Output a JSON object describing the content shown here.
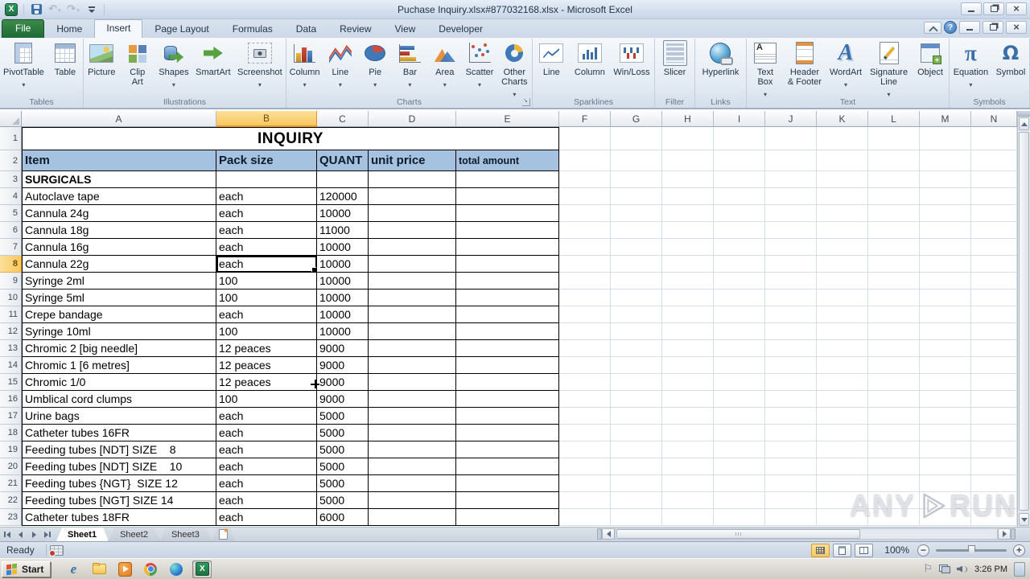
{
  "titlebar": {
    "title": "Puchase Inquiry.xlsx#877032168.xlsx  -  Microsoft Excel",
    "qat": [
      {
        "icon": "excel-logo"
      },
      {
        "icon": "save"
      },
      {
        "icon": "undo",
        "arrow": true
      },
      {
        "icon": "redo",
        "arrow": true
      },
      {
        "icon": "qat-dropdown"
      }
    ],
    "window_buttons": [
      "minimize",
      "restore",
      "close"
    ]
  },
  "ribbon": {
    "tabs": [
      {
        "label": "File",
        "file": true
      },
      {
        "label": "Home"
      },
      {
        "label": "Insert",
        "active": true
      },
      {
        "label": "Page Layout"
      },
      {
        "label": "Formulas"
      },
      {
        "label": "Data"
      },
      {
        "label": "Review"
      },
      {
        "label": "View"
      },
      {
        "label": "Developer"
      }
    ],
    "workbook_buttons": [
      "collapse-ribbon",
      "help",
      "minimize",
      "restore",
      "close"
    ],
    "groups": [
      {
        "name": "Tables",
        "buttons": [
          {
            "label": "PivotTable",
            "icon": "pivottable",
            "arrow": true
          },
          {
            "label": "Table",
            "icon": "table"
          }
        ]
      },
      {
        "name": "Illustrations",
        "buttons": [
          {
            "label": "Picture",
            "icon": "picture"
          },
          {
            "label": "Clip\nArt",
            "icon": "clipart"
          },
          {
            "label": "Shapes",
            "icon": "shapes",
            "arrow": true
          },
          {
            "label": "SmartArt",
            "icon": "smartart"
          },
          {
            "label": "Screenshot",
            "icon": "screenshot",
            "arrow": true
          }
        ]
      },
      {
        "name": "Charts",
        "launcher": true,
        "buttons": [
          {
            "label": "Column",
            "icon": "chart-column",
            "arrow": true
          },
          {
            "label": "Line",
            "icon": "chart-line",
            "arrow": true
          },
          {
            "label": "Pie",
            "icon": "chart-pie",
            "arrow": true
          },
          {
            "label": "Bar",
            "icon": "chart-bar",
            "arrow": true
          },
          {
            "label": "Area",
            "icon": "chart-area",
            "arrow": true
          },
          {
            "label": "Scatter",
            "icon": "chart-scatter",
            "arrow": true
          },
          {
            "label": "Other\nCharts",
            "icon": "chart-other",
            "arrow": true
          }
        ]
      },
      {
        "name": "Sparklines",
        "buttons": [
          {
            "label": "Line",
            "icon": "spark-line"
          },
          {
            "label": "Column",
            "icon": "spark-column"
          },
          {
            "label": "Win/Loss",
            "icon": "spark-winloss"
          }
        ]
      },
      {
        "name": "Filter",
        "buttons": [
          {
            "label": "Slicer",
            "icon": "slicer"
          }
        ]
      },
      {
        "name": "Links",
        "buttons": [
          {
            "label": "Hyperlink",
            "icon": "hyperlink"
          }
        ]
      },
      {
        "name": "Text",
        "buttons": [
          {
            "label": "Text\nBox",
            "icon": "textbox",
            "arrow": true
          },
          {
            "label": "Header\n& Footer",
            "icon": "headfoot"
          },
          {
            "label": "WordArt",
            "icon": "wordart",
            "arrow": true
          },
          {
            "label": "Signature\nLine",
            "icon": "signature",
            "arrow": true
          },
          {
            "label": "Object",
            "icon": "object"
          }
        ]
      },
      {
        "name": "Symbols",
        "buttons": [
          {
            "label": "Equation",
            "icon": "equation",
            "arrow": true
          },
          {
            "label": "Symbol",
            "icon": "symbol"
          }
        ]
      }
    ]
  },
  "sheet": {
    "columns": [
      {
        "letter": "A"
      },
      {
        "letter": "B"
      },
      {
        "letter": "C"
      },
      {
        "letter": "D"
      },
      {
        "letter": "E"
      },
      {
        "letter": "F"
      },
      {
        "letter": "G"
      },
      {
        "letter": "H"
      },
      {
        "letter": "I"
      },
      {
        "letter": "J"
      },
      {
        "letter": "K"
      },
      {
        "letter": "L"
      },
      {
        "letter": "M"
      },
      {
        "letter": "N"
      }
    ],
    "selected_column": "B",
    "selected_row": 8,
    "selected_cell": "B8",
    "title_row": {
      "row": 1,
      "text": "INQUIRY"
    },
    "header_row": {
      "row": 2,
      "cells": [
        "Item",
        "Pack size",
        "QUANT",
        "unit price",
        "total amount"
      ]
    },
    "rows": [
      {
        "n": 3,
        "item": "SURGICALS",
        "pack": "",
        "qty": "",
        "bold": true
      },
      {
        "n": 4,
        "item": "Autoclave tape",
        "pack": "each",
        "qty": "120000"
      },
      {
        "n": 5,
        "item": "Cannula 24g",
        "pack": "each",
        "qty": "10000"
      },
      {
        "n": 6,
        "item": "Cannula 18g",
        "pack": "each",
        "qty": "11000"
      },
      {
        "n": 7,
        "item": "Cannula 16g",
        "pack": "each",
        "qty": "10000"
      },
      {
        "n": 8,
        "item": "Cannula 22g",
        "pack": "each",
        "qty": "10000"
      },
      {
        "n": 9,
        "item": "Syringe 2ml",
        "pack": "100",
        "qty": "10000"
      },
      {
        "n": 10,
        "item": "Syringe 5ml",
        "pack": "100",
        "qty": "10000"
      },
      {
        "n": 11,
        "item": "Crepe bandage",
        "pack": "each",
        "qty": "10000"
      },
      {
        "n": 12,
        "item": "Syringe 10ml",
        "pack": "100",
        "qty": "10000"
      },
      {
        "n": 13,
        "item": "Chromic 2 [big needle]",
        "pack": "12 peaces",
        "qty": "9000"
      },
      {
        "n": 14,
        "item": "Chromic 1 [6 metres]",
        "pack": "12 peaces",
        "qty": "9000"
      },
      {
        "n": 15,
        "item": "Chromic 1/0",
        "pack": "12 peaces",
        "qty": "9000"
      },
      {
        "n": 16,
        "item": "Umblical cord clumps",
        "pack": "100",
        "qty": "9000"
      },
      {
        "n": 17,
        "item": "Urine bags",
        "pack": "each",
        "qty": "5000"
      },
      {
        "n": 18,
        "item": "Catheter tubes 16FR",
        "pack": "each",
        "qty": "5000"
      },
      {
        "n": 19,
        "item": "Feeding tubes [NDT] SIZE    8",
        "pack": "each",
        "qty": "5000"
      },
      {
        "n": 20,
        "item": "Feeding tubes [NDT] SIZE    10",
        "pack": "each",
        "qty": "5000"
      },
      {
        "n": 21,
        "item": "Feeding tubes {NGT}  SIZE 12",
        "pack": "each",
        "qty": "5000"
      },
      {
        "n": 22,
        "item": "Feeding tubes [NGT] SIZE 14",
        "pack": "each",
        "qty": "5000"
      },
      {
        "n": 23,
        "item": "Catheter tubes 18FR",
        "pack": "each",
        "qty": "6000"
      }
    ]
  },
  "sheet_tabs": {
    "sheets": [
      "Sheet1",
      "Sheet2",
      "Sheet3"
    ],
    "active": "Sheet1"
  },
  "status": {
    "ready": "Ready",
    "zoom_level": "100%"
  },
  "taskbar": {
    "start_label": "Start",
    "apps": [
      {
        "icon": "ie"
      },
      {
        "icon": "folder"
      },
      {
        "icon": "wmp"
      },
      {
        "icon": "chrome"
      },
      {
        "icon": "edge"
      },
      {
        "icon": "excel",
        "active": true
      }
    ],
    "tray_icons": [
      "flag",
      "network",
      "volume"
    ],
    "time": "3:26 PM"
  },
  "watermark": {
    "any": "ANY",
    "run": "RUN"
  },
  "colors": {
    "header_fill": "#a5c2e0",
    "selection_highlight": "#f9c75f",
    "file_tab_green": "#1d6b38",
    "grid_line": "#d8dfe8"
  }
}
